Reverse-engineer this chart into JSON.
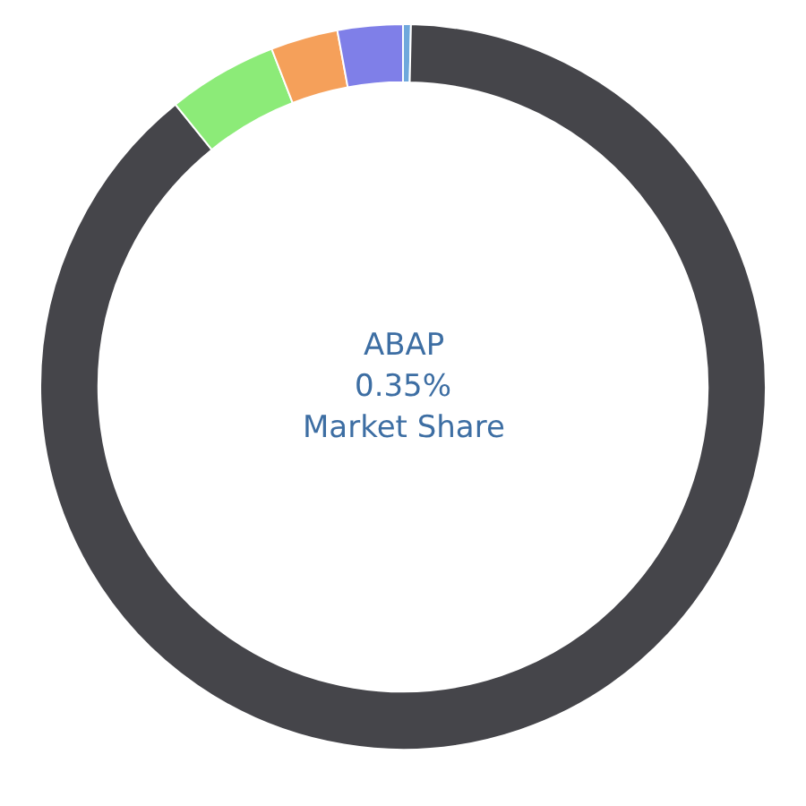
{
  "chart_data": {
    "type": "donut",
    "categories": [
      null,
      null,
      null,
      null,
      null
    ],
    "values": [
      0.35,
      88.85,
      4.9,
      3.0,
      2.9
    ],
    "colors": [
      "#6fa8dc",
      "#45454a",
      "#8ceb78",
      "#f5a05a",
      "#7f7fe8"
    ],
    "annotations": [
      "ABAP",
      "0.35%",
      "Market Share"
    ],
    "legend": false
  }
}
